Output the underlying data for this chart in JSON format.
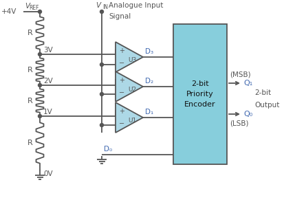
{
  "bg_color": "#ffffff",
  "line_color": "#555555",
  "blue_color": "#4169b0",
  "encoder_fill": "#87cedc",
  "encoder_stroke": "#555555",
  "comp_fill": "#add8e6",
  "comp_stroke": "#555555",
  "vref_label": "V",
  "vref_sub": "REF",
  "vin_label": "V",
  "vin_sub": "IN",
  "analogue_line1": "Analogue Input",
  "analogue_line2": "Signal",
  "voltages": [
    "3V",
    "2V",
    "1V",
    "0V"
  ],
  "R_labels": [
    "R",
    "R",
    "R",
    "R"
  ],
  "comp_labels": [
    "U3",
    "U2",
    "U1"
  ],
  "D_labels": [
    "D₃",
    "D₂",
    "D₁",
    "D₀"
  ],
  "encoder_title": [
    "2-bit",
    "Priority",
    "Encoder"
  ],
  "Q_labels": [
    "Q₁",
    "Q₀"
  ],
  "MSB_label": "(MSB)",
  "LSB_label": "(LSB)",
  "output_line1": "2-bit",
  "output_line2": "Output",
  "figsize": [
    4.29,
    3.07
  ],
  "dpi": 100
}
